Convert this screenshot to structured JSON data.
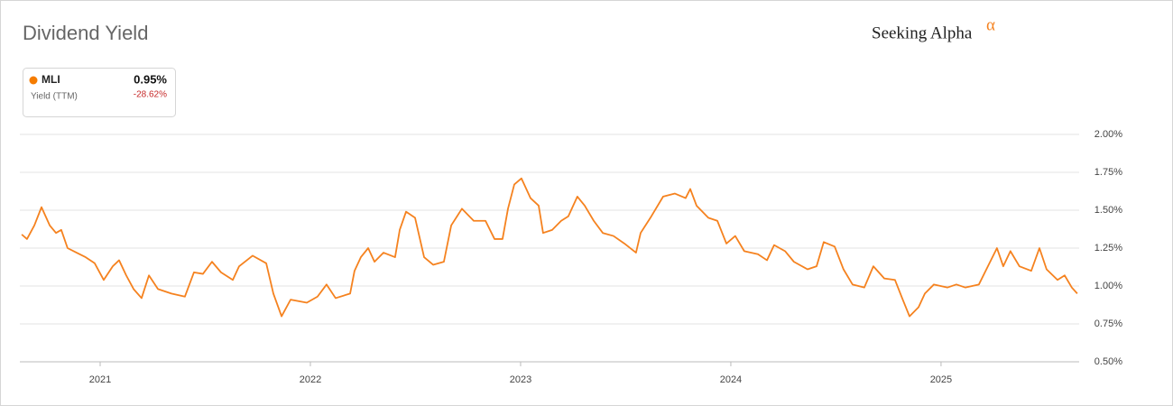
{
  "title": "Dividend Yield",
  "brand": "Seeking Alpha",
  "brand_mark": "α",
  "legend": {
    "symbol": "MLI",
    "value": "0.95%",
    "metric": "Yield (TTM)",
    "change": "-28.62%"
  },
  "chart_data": {
    "type": "line",
    "x": [
      2020.627,
      2020.652,
      2020.687,
      2020.721,
      2020.76,
      2020.79,
      2020.815,
      2020.845,
      2020.888,
      2020.931,
      2020.974,
      2021.017,
      2021.06,
      2021.09,
      2021.124,
      2021.159,
      2021.197,
      2021.232,
      2021.275,
      2021.339,
      2021.403,
      2021.446,
      2021.489,
      2021.532,
      2021.575,
      2021.631,
      2021.661,
      2021.725,
      2021.79,
      2021.824,
      2021.863,
      2021.906,
      2021.983,
      2022.034,
      2022.077,
      2022.12,
      2022.189,
      2022.21,
      2022.24,
      2022.275,
      2022.305,
      2022.348,
      2022.403,
      2022.425,
      2022.455,
      2022.498,
      2022.541,
      2022.584,
      2022.635,
      2022.67,
      2022.721,
      2022.777,
      2022.833,
      2022.876,
      2022.914,
      2022.94,
      2022.97,
      2023.004,
      2023.047,
      2023.086,
      2023.107,
      2023.15,
      2023.193,
      2023.227,
      2023.27,
      2023.305,
      2023.348,
      2023.391,
      2023.442,
      2023.494,
      2023.549,
      2023.571,
      2023.622,
      2023.678,
      2023.734,
      2023.785,
      2023.807,
      2023.837,
      2023.893,
      2023.936,
      2023.979,
      2024.021,
      2024.064,
      2024.129,
      2024.172,
      2024.206,
      2024.258,
      2024.3,
      2024.365,
      2024.408,
      2024.442,
      2024.494,
      2024.536,
      2024.579,
      2024.635,
      2024.678,
      2024.73,
      2024.781,
      2024.815,
      2024.85,
      2024.893,
      2024.923,
      2024.966,
      2025.03,
      2025.073,
      2025.116,
      2025.18,
      2025.223,
      2025.266,
      2025.296,
      2025.33,
      2025.373,
      2025.429,
      2025.468,
      2025.502,
      2025.554,
      2025.588,
      2025.622,
      2025.648
    ],
    "series": [
      {
        "name": "MLI",
        "color": "#f5821f",
        "values": [
          1.34,
          1.31,
          1.4,
          1.52,
          1.4,
          1.35,
          1.37,
          1.25,
          1.22,
          1.19,
          1.15,
          1.04,
          1.13,
          1.17,
          1.07,
          0.98,
          0.92,
          1.07,
          0.98,
          0.95,
          0.93,
          1.09,
          1.08,
          1.16,
          1.09,
          1.04,
          1.13,
          1.2,
          1.15,
          0.95,
          0.8,
          0.91,
          0.89,
          0.93,
          1.01,
          0.92,
          0.95,
          1.1,
          1.19,
          1.25,
          1.16,
          1.22,
          1.19,
          1.37,
          1.49,
          1.45,
          1.19,
          1.14,
          1.16,
          1.4,
          1.51,
          1.43,
          1.43,
          1.31,
          1.31,
          1.51,
          1.67,
          1.71,
          1.58,
          1.53,
          1.35,
          1.37,
          1.43,
          1.46,
          1.59,
          1.53,
          1.43,
          1.35,
          1.33,
          1.28,
          1.22,
          1.35,
          1.46,
          1.59,
          1.61,
          1.58,
          1.64,
          1.53,
          1.45,
          1.43,
          1.28,
          1.33,
          1.23,
          1.21,
          1.17,
          1.27,
          1.23,
          1.16,
          1.11,
          1.13,
          1.29,
          1.26,
          1.11,
          1.01,
          0.99,
          1.13,
          1.05,
          1.04,
          0.92,
          0.8,
          0.86,
          0.95,
          1.01,
          0.99,
          1.01,
          0.99,
          1.01,
          1.13,
          1.25,
          1.13,
          1.23,
          1.13,
          1.1,
          1.25,
          1.11,
          1.04,
          1.07,
          0.99,
          0.95
        ]
      }
    ],
    "xlim": [
      2020.618,
      2025.657
    ],
    "xticks": [
      2021,
      2022,
      2023,
      2024,
      2025
    ],
    "ylim": [
      0.5,
      2.0
    ],
    "yticks": [
      {
        "value": 0.5,
        "label": "0.50%"
      },
      {
        "value": 0.75,
        "label": "0.75%"
      },
      {
        "value": 1.0,
        "label": "1.00%"
      },
      {
        "value": 1.25,
        "label": "1.25%"
      },
      {
        "value": 1.5,
        "label": "1.50%"
      },
      {
        "value": 1.75,
        "label": "1.75%"
      },
      {
        "value": 2.0,
        "label": "2.00%"
      }
    ],
    "grid": true
  }
}
